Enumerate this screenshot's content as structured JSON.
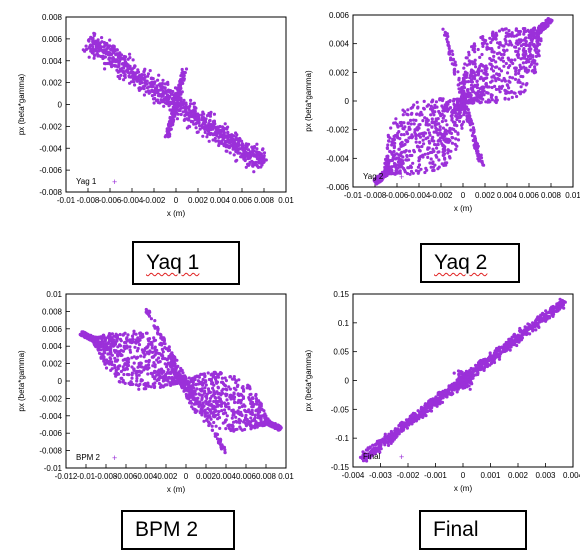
{
  "colors": {
    "series": "#9b30d9",
    "axis": "#000000",
    "grid": "#d0d0d0"
  },
  "captions": {
    "yag1": "Yaq 1",
    "yag2": "Yaq 2",
    "bpm2": "BPM 2",
    "final": "Final"
  },
  "chart_data": [
    {
      "type": "scatter",
      "legend": "Yag 1",
      "legend_position": "bottom-left",
      "xlabel": "x (m)",
      "ylabel": "px (beta*gamma)",
      "xlim": [
        -0.01,
        0.01
      ],
      "ylim": [
        -0.008,
        0.008
      ],
      "grid": true,
      "x_ticks": [
        "-0.01",
        "-0.008",
        "-0.006",
        "-0.004",
        "-0.002",
        "0",
        "0.002",
        "0.004",
        "0.006",
        "0.008",
        "0.01"
      ],
      "y_ticks": [
        "-0.008",
        "-0.006",
        "-0.004",
        "-0.002",
        "0",
        "0.002",
        "0.004",
        "0.006",
        "0.008"
      ],
      "series": [
        {
          "shape": "band",
          "from": [
            -0.008,
            0.0058
          ],
          "to": [
            0.008,
            -0.0055
          ],
          "width": 0.0014
        },
        {
          "shape": "spike",
          "from": [
            -0.0008,
            -0.003
          ],
          "to": [
            0.0008,
            0.0033
          ]
        }
      ]
    },
    {
      "type": "scatter",
      "legend": "Yag 2",
      "legend_position": "bottom-left",
      "xlabel": "x (m)",
      "ylabel": "px (beta*gamma)",
      "xlim": [
        -0.01,
        0.01
      ],
      "ylim": [
        -0.006,
        0.006
      ],
      "grid": true,
      "x_ticks": [
        "-0.01",
        "-0.008",
        "-0.006",
        "-0.004",
        "-0.002",
        "0",
        "0.002",
        "0.004",
        "0.006",
        "0.008",
        "0.01"
      ],
      "y_ticks": [
        "-0.006",
        "-0.004",
        "-0.002",
        "0",
        "0.002",
        "0.004",
        "0.006"
      ],
      "series": [
        {
          "shape": "bowtie",
          "from": [
            -0.008,
            -0.0057
          ],
          "to": [
            0.008,
            0.0057
          ],
          "lobe": 0.0045
        },
        {
          "shape": "spike",
          "from": [
            0.0017,
            -0.0045
          ],
          "to": [
            -0.0017,
            0.005
          ]
        }
      ]
    },
    {
      "type": "scatter",
      "legend": "BPM 2",
      "legend_position": "bottom-left",
      "xlabel": "x (m)",
      "ylabel": "px (beta*gamma)",
      "xlim": [
        -0.012,
        0.01
      ],
      "ylim": [
        -0.01,
        0.01
      ],
      "grid": true,
      "x_ticks": [
        "-0.012",
        "-0.01",
        "-0.008",
        "-0.006",
        "-0.004",
        "-0.002",
        "0",
        "0.002",
        "0.004",
        "0.006",
        "0.008",
        "0.01"
      ],
      "y_ticks": [
        "-0.01",
        "-0.008",
        "-0.006",
        "-0.004",
        "-0.002",
        "0",
        "0.002",
        "0.004",
        "0.006",
        "0.008",
        "0.01"
      ],
      "series": [
        {
          "shape": "bowtie",
          "from": [
            -0.0105,
            0.0055
          ],
          "to": [
            0.0095,
            -0.0055
          ],
          "lobe": 0.006
        },
        {
          "shape": "spike",
          "from": [
            -0.004,
            0.0083
          ],
          "to": [
            0.004,
            -0.0083
          ]
        }
      ]
    },
    {
      "type": "scatter",
      "legend": "Final",
      "legend_position": "bottom-left",
      "xlabel": "x (m)",
      "ylabel": "px (beta*gamma)",
      "xlim": [
        -0.004,
        0.004
      ],
      "ylim": [
        -0.15,
        0.15
      ],
      "grid": true,
      "x_ticks": [
        "-0.004",
        "-0.003",
        "-0.002",
        "-0.001",
        "0",
        "0.001",
        "0.002",
        "0.003",
        "0.004"
      ],
      "y_ticks": [
        "-0.15",
        "-0.1",
        "-0.05",
        "0",
        "0.05",
        "0.1",
        "0.15"
      ],
      "series": [
        {
          "shape": "band",
          "from": [
            -0.0037,
            -0.137
          ],
          "to": [
            0.0037,
            0.137
          ],
          "width": 0.012
        },
        {
          "shape": "blob",
          "center": [
            0,
            0
          ],
          "rx": 0.0005,
          "ry": 0.02
        }
      ]
    }
  ]
}
